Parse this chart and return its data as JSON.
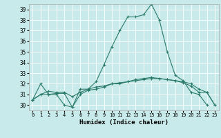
{
  "xlabel": "Humidex (Indice chaleur)",
  "background_color": "#c8eaea",
  "grid_color": "#ffffff",
  "line_color": "#2a7a6a",
  "xlim": [
    -0.5,
    23.5
  ],
  "ylim": [
    29.5,
    39.5
  ],
  "xticks": [
    0,
    1,
    2,
    3,
    4,
    5,
    6,
    7,
    8,
    9,
    10,
    11,
    12,
    13,
    14,
    15,
    16,
    17,
    18,
    19,
    20,
    21,
    22,
    23
  ],
  "yticks": [
    30,
    31,
    32,
    33,
    34,
    35,
    36,
    37,
    38,
    39
  ],
  "series": [
    {
      "x": [
        0,
        1,
        2,
        3,
        4,
        5,
        6,
        7,
        8,
        9,
        10,
        11,
        12,
        13,
        14,
        15,
        16,
        17,
        18,
        19,
        20,
        21,
        22
      ],
      "y": [
        30.5,
        32.0,
        31.0,
        31.0,
        30.0,
        29.8,
        31.5,
        31.5,
        32.2,
        33.8,
        35.5,
        37.0,
        38.3,
        38.3,
        38.5,
        39.5,
        38.0,
        35.0,
        32.8,
        32.3,
        31.2,
        31.0,
        30.0
      ]
    },
    {
      "x": [
        0,
        1,
        2,
        3,
        4,
        5,
        6,
        7,
        8,
        9,
        10,
        11,
        12,
        13,
        14,
        15,
        16,
        17,
        18,
        19,
        20,
        21,
        22,
        23
      ],
      "y": [
        30.5,
        31.0,
        31.0,
        31.1,
        31.1,
        29.8,
        31.0,
        31.4,
        31.5,
        31.7,
        32.0,
        32.0,
        32.2,
        32.3,
        32.4,
        32.5,
        32.5,
        32.4,
        32.3,
        32.1,
        31.8,
        31.2,
        31.2,
        30.0
      ]
    },
    {
      "x": [
        0,
        1,
        2,
        3,
        4,
        5,
        6,
        7,
        8,
        9,
        10,
        11,
        12,
        13,
        14,
        15,
        16,
        17,
        18,
        19,
        20,
        21,
        22,
        23
      ],
      "y": [
        30.5,
        31.0,
        31.3,
        31.2,
        31.2,
        30.8,
        31.2,
        31.5,
        31.7,
        31.8,
        32.0,
        32.1,
        32.2,
        32.4,
        32.5,
        32.6,
        32.5,
        32.4,
        32.3,
        32.2,
        32.0,
        31.5,
        31.2,
        30.0
      ]
    }
  ]
}
